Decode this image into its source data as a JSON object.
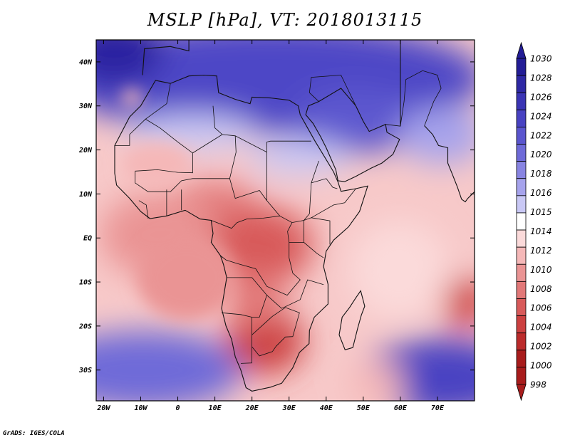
{
  "title": "MSLP [hPa], VT: 2018013115",
  "credit": "GrADS: IGES/COLA",
  "map": {
    "lon_range": [
      -22,
      80
    ],
    "lat_range": [
      -37,
      45
    ],
    "lat_ticks": [
      {
        "value": 40,
        "label": "40N"
      },
      {
        "value": 30,
        "label": "30N"
      },
      {
        "value": 20,
        "label": "20N"
      },
      {
        "value": 10,
        "label": "10N"
      },
      {
        "value": 0,
        "label": "EQ"
      },
      {
        "value": -10,
        "label": "10S"
      },
      {
        "value": -20,
        "label": "20S"
      },
      {
        "value": -30,
        "label": "30S"
      }
    ],
    "lon_ticks": [
      {
        "value": -20,
        "label": "20W"
      },
      {
        "value": -10,
        "label": "10W"
      },
      {
        "value": 0,
        "label": "0"
      },
      {
        "value": 10,
        "label": "10E"
      },
      {
        "value": 20,
        "label": "20E"
      },
      {
        "value": 30,
        "label": "30E"
      },
      {
        "value": 40,
        "label": "40E"
      },
      {
        "value": 50,
        "label": "50E"
      },
      {
        "value": 60,
        "label": "60E"
      },
      {
        "value": 70,
        "label": "70E"
      }
    ]
  },
  "colorbar": {
    "levels": [
      "1030",
      "1028",
      "1026",
      "1024",
      "1022",
      "1020",
      "1018",
      "1016",
      "1015",
      "1014",
      "1012",
      "1010",
      "1008",
      "1006",
      "1004",
      "1002",
      "1000",
      "998"
    ],
    "colors": [
      "#231d96",
      "#2e28a4",
      "#3a34b4",
      "#4842c2",
      "#5a55ce",
      "#6e6ad8",
      "#8884e2",
      "#a6a3ec",
      "#c9c8f5",
      "#ffffff",
      "#fbdada",
      "#f5b8b8",
      "#ea9494",
      "#e27878",
      "#d85a5a",
      "#cc4040",
      "#bb2b2b",
      "#a81c1c"
    ]
  },
  "pressure_features": [
    {
      "type": "high",
      "lon": -20,
      "lat": 42,
      "value": 1030
    },
    {
      "type": "high",
      "lon": 22,
      "lat": 33,
      "value": 1026
    },
    {
      "type": "high",
      "lon": 45,
      "lat": 28,
      "value": 1024
    },
    {
      "type": "high",
      "lon": -10,
      "lat": -28,
      "value": 1020
    },
    {
      "type": "high",
      "lon": 75,
      "lat": -33,
      "value": 1024
    },
    {
      "type": "low",
      "lon": 27,
      "lat": 1,
      "value": 1004
    },
    {
      "type": "low",
      "lon": 22,
      "lat": -23,
      "value": 1002
    },
    {
      "type": "low",
      "lon": 79,
      "lat": -15,
      "value": 1002
    },
    {
      "type": "low",
      "lon": 10,
      "lat": 10,
      "value": 1008
    }
  ]
}
